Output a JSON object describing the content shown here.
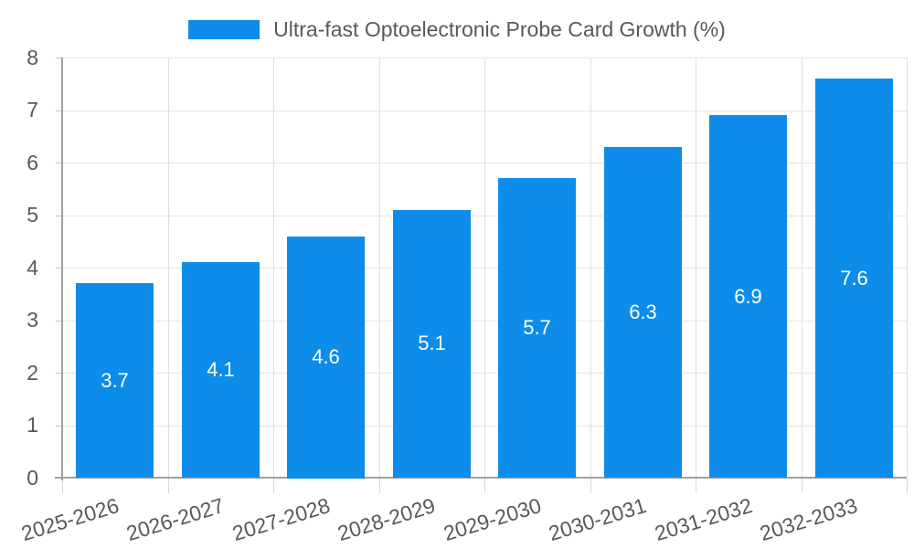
{
  "chart_data": {
    "type": "bar",
    "legend_label": "Ultra-fast Optoelectronic Probe Card Growth (%)",
    "legend_position": "top-center",
    "categories": [
      "2025-2026",
      "2026-2027",
      "2027-2028",
      "2028-2029",
      "2029-2030",
      "2030-2031",
      "2031-2032",
      "2032-2033"
    ],
    "values": [
      3.7,
      4.1,
      4.6,
      5.1,
      5.7,
      6.3,
      6.9,
      7.6
    ],
    "bar_labels": [
      "3.7",
      "4.1",
      "4.6",
      "5.1",
      "5.7",
      "6.3",
      "6.9",
      "7.6"
    ],
    "xlabel": "",
    "ylabel": "",
    "ylim": [
      0,
      8
    ],
    "yticks": [
      0,
      1,
      2,
      3,
      4,
      5,
      6,
      7,
      8
    ],
    "grid": true,
    "x_tick_rotation_deg": -17,
    "colors": {
      "bar": "#0d8ce9",
      "bar_label_text": "#ffffff",
      "axis_text": "#595959",
      "legend_text": "#595959",
      "gridline_h": "#e5e5e5",
      "gridline_v": "#dedede",
      "axis_line": "#a0a0a0",
      "tick_mark_y": "#c2c2c2",
      "tick_mark_x": "#d8d8d8",
      "background": "#ffffff"
    }
  }
}
